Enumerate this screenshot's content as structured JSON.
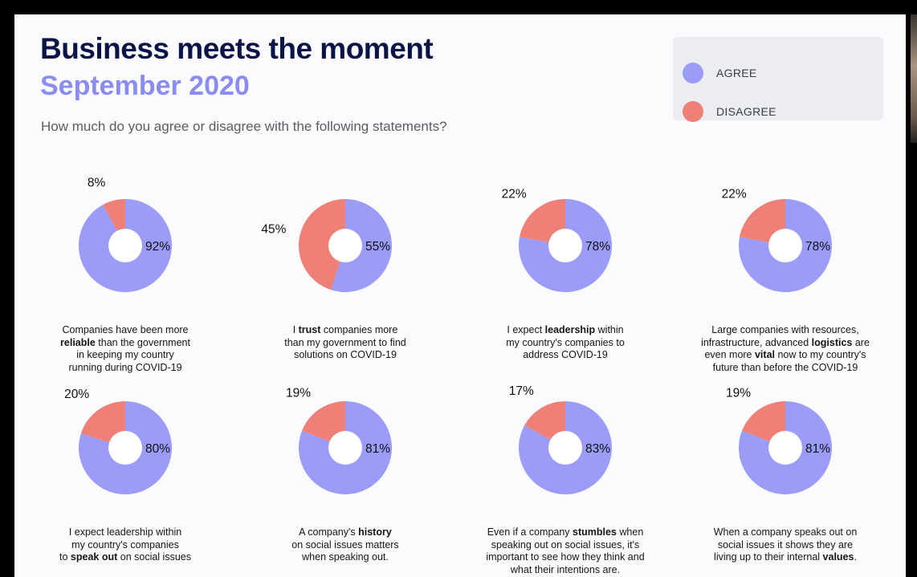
{
  "header": {
    "title": "Business meets the moment",
    "subtitle": "September 2020",
    "question": "How much do you agree or disagree with the following statements?"
  },
  "legend": [
    {
      "label": "AGREE",
      "color": "#9a9cf8"
    },
    {
      "label": "DISAGREE",
      "color": "#ef8078"
    }
  ],
  "chart_data": [
    {
      "type": "pie",
      "series": [
        {
          "values": [
            92,
            8
          ]
        }
      ],
      "labels": [
        "92%",
        "8%"
      ],
      "caption": [
        {
          "t": "Companies have been more "
        },
        {
          "br": true
        },
        {
          "t": "reliable",
          "b": true
        },
        {
          "t": " than the government"
        },
        {
          "br": true
        },
        {
          "t": "in keeping my country"
        },
        {
          "br": true
        },
        {
          "t": "running during COVID-19"
        }
      ]
    },
    {
      "type": "pie",
      "series": [
        {
          "values": [
            55,
            45
          ]
        }
      ],
      "labels": [
        "55%",
        "45%"
      ],
      "caption": [
        {
          "t": "I "
        },
        {
          "t": "trust",
          "b": true
        },
        {
          "t": " companies more"
        },
        {
          "br": true
        },
        {
          "t": "than my government to find"
        },
        {
          "br": true
        },
        {
          "t": "solutions on COVID-19"
        }
      ]
    },
    {
      "type": "pie",
      "series": [
        {
          "values": [
            78,
            22
          ]
        }
      ],
      "labels": [
        "78%",
        "22%"
      ],
      "caption": [
        {
          "t": "I expect "
        },
        {
          "t": "leadership",
          "b": true
        },
        {
          "t": " within"
        },
        {
          "br": true
        },
        {
          "t": "my country's companies to"
        },
        {
          "br": true
        },
        {
          "t": "address COVID-19"
        }
      ]
    },
    {
      "type": "pie",
      "series": [
        {
          "values": [
            78,
            22
          ]
        }
      ],
      "labels": [
        "78%",
        "22%"
      ],
      "caption": [
        {
          "t": "Large companies with resources,"
        },
        {
          "br": true
        },
        {
          "t": "infrastructure, advanced "
        },
        {
          "t": "logistics",
          "b": true
        },
        {
          "t": " are"
        },
        {
          "br": true
        },
        {
          "t": "even more "
        },
        {
          "t": "vital",
          "b": true
        },
        {
          "t": " now to my country's"
        },
        {
          "br": true
        },
        {
          "t": "future than before the COVID-19"
        }
      ]
    },
    {
      "type": "pie",
      "series": [
        {
          "values": [
            80,
            20
          ]
        }
      ],
      "labels": [
        "80%",
        "20%"
      ],
      "caption": [
        {
          "t": "I expect leadership within"
        },
        {
          "br": true
        },
        {
          "t": "my country's companies"
        },
        {
          "br": true
        },
        {
          "t": "to "
        },
        {
          "t": "speak out",
          "b": true
        },
        {
          "t": " on social issues"
        }
      ]
    },
    {
      "type": "pie",
      "series": [
        {
          "values": [
            81,
            19
          ]
        }
      ],
      "labels": [
        "81%",
        "19%"
      ],
      "caption": [
        {
          "t": "A company's "
        },
        {
          "t": "history",
          "b": true
        },
        {
          "br": true
        },
        {
          "t": "on social issues matters"
        },
        {
          "br": true
        },
        {
          "t": "when speaking out."
        }
      ]
    },
    {
      "type": "pie",
      "series": [
        {
          "values": [
            83,
            17
          ]
        }
      ],
      "labels": [
        "83%",
        "17%"
      ],
      "caption": [
        {
          "t": "Even if a company "
        },
        {
          "t": "stumbles",
          "b": true
        },
        {
          "t": " when"
        },
        {
          "br": true
        },
        {
          "t": "speaking out on social issues, it's"
        },
        {
          "br": true
        },
        {
          "t": "important to see how they think and"
        },
        {
          "br": true
        },
        {
          "t": "what their intentions are."
        }
      ]
    },
    {
      "type": "pie",
      "series": [
        {
          "values": [
            81,
            19
          ]
        }
      ],
      "labels": [
        "81%",
        "19%"
      ],
      "caption": [
        {
          "t": "When a company speaks out on"
        },
        {
          "br": true
        },
        {
          "t": "social issues it shows they are"
        },
        {
          "br": true
        },
        {
          "t": "living up to their internal "
        },
        {
          "t": "values",
          "b": true
        },
        {
          "t": "."
        }
      ]
    }
  ]
}
